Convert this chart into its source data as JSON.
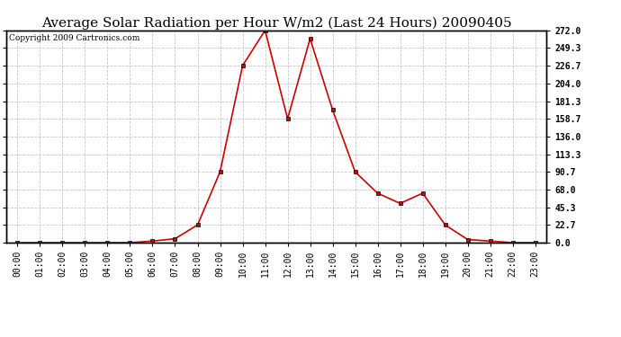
{
  "title": "Average Solar Radiation per Hour W/m2 (Last 24 Hours) 20090405",
  "copyright": "Copyright 2009 Cartronics.com",
  "hours": [
    0,
    1,
    2,
    3,
    4,
    5,
    6,
    7,
    8,
    9,
    10,
    11,
    12,
    13,
    14,
    15,
    16,
    17,
    18,
    19,
    20,
    21,
    22,
    23
  ],
  "values": [
    0.0,
    0.0,
    0.0,
    0.0,
    0.0,
    0.0,
    2.0,
    5.0,
    22.7,
    90.7,
    226.7,
    272.0,
    158.7,
    261.3,
    170.0,
    90.7,
    63.3,
    50.3,
    63.3,
    22.7,
    4.0,
    2.0,
    0.0,
    0.0
  ],
  "line_color": "#cc0000",
  "marker": "s",
  "marker_size": 2.5,
  "bg_color": "#ffffff",
  "grid_color": "#c8c8c8",
  "ylim": [
    0.0,
    272.0
  ],
  "yticks": [
    0.0,
    22.7,
    45.3,
    68.0,
    90.7,
    113.3,
    136.0,
    158.7,
    181.3,
    204.0,
    226.7,
    249.3,
    272.0
  ],
  "title_fontsize": 11,
  "tick_fontsize": 7,
  "copyright_fontsize": 6.5
}
